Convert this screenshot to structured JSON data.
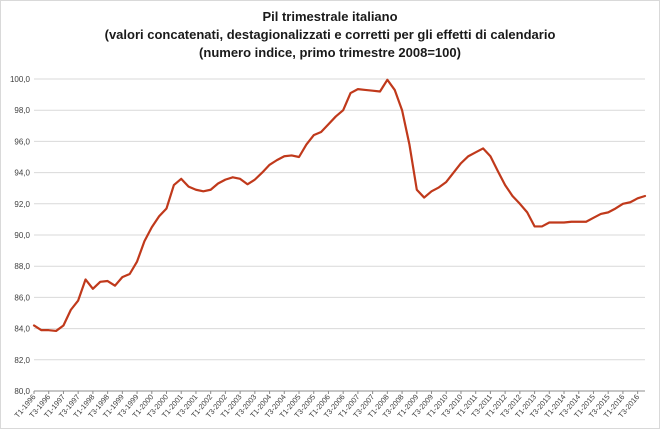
{
  "chart_data": {
    "type": "line",
    "title": "Pil trimestrale italiano",
    "subtitle": "(valori concatenati, destagionalizzati e corretti per gli effetti di calendario",
    "subtitle2": "(numero indice, primo trimestre 2008=100)",
    "xlabel": "",
    "ylabel": "",
    "ylim": [
      80,
      100
    ],
    "yticks": [
      "100,0",
      "98,0",
      "96,0",
      "94,0",
      "92,0",
      "90,0",
      "88,0",
      "86,0",
      "84,0",
      "82,0",
      "80,0"
    ],
    "grid": true,
    "legend": "none",
    "x": [
      "T1-1996",
      "T2-1996",
      "T3-1996",
      "T4-1996",
      "T1-1997",
      "T2-1997",
      "T3-1997",
      "T4-1997",
      "T1-1998",
      "T2-1998",
      "T3-1998",
      "T4-1998",
      "T1-1999",
      "T2-1999",
      "T3-1999",
      "T4-1999",
      "T1-2000",
      "T2-2000",
      "T3-2000",
      "T4-2000",
      "T1-2001",
      "T2-2001",
      "T3-2001",
      "T4-2001",
      "T1-2002",
      "T2-2002",
      "T3-2002",
      "T4-2002",
      "T1-2003",
      "T2-2003",
      "T3-2003",
      "T4-2003",
      "T1-2004",
      "T2-2004",
      "T3-2004",
      "T4-2004",
      "T1-2005",
      "T2-2005",
      "T3-2005",
      "T4-2005",
      "T1-2006",
      "T2-2006",
      "T3-2006",
      "T4-2006",
      "T1-2007",
      "T2-2007",
      "T3-2007",
      "T4-2007",
      "T1-2008",
      "T2-2008",
      "T3-2008",
      "T4-2008",
      "T1-2009",
      "T2-2009",
      "T3-2009",
      "T4-2009",
      "T1-2010",
      "T2-2010",
      "T3-2010",
      "T4-2010",
      "T1-2011",
      "T2-2011",
      "T3-2011",
      "T4-2011",
      "T1-2012",
      "T2-2012",
      "T3-2012",
      "T4-2012",
      "T1-2013",
      "T2-2013",
      "T3-2013",
      "T4-2013",
      "T1-2014",
      "T2-2014",
      "T3-2014",
      "T4-2014",
      "T1-2015",
      "T2-2015",
      "T3-2015",
      "T4-2015",
      "T1-2016",
      "T2-2016",
      "T3-2016",
      "T4-2016"
    ],
    "xtick_labels": [
      "T1-1996",
      "T3-1996",
      "T1-1997",
      "T3-1997",
      "T1-1998",
      "T3-1998",
      "T1-1999",
      "T3-1999",
      "T1-2000",
      "T3-2000",
      "T1-2001",
      "T3-2001",
      "T1-2002",
      "T3-2002",
      "T1-2003",
      "T3-2003",
      "T1-2004",
      "T3-2004",
      "T1-2005",
      "T3-2005",
      "T1-2006",
      "T3-2006",
      "T1-2007",
      "T3-2007",
      "T1-2008",
      "T3-2008",
      "T1-2009",
      "T3-2009",
      "T1-2010",
      "T3-2010",
      "T1-2011",
      "T3-2011",
      "T1-2012",
      "T3-2012",
      "T1-2013",
      "T3-2013",
      "T1-2014",
      "T3-2014",
      "T1-2015",
      "T3-2015",
      "T1-2016",
      "T3-2016"
    ],
    "series": [
      {
        "color": "#c0391b",
        "values": [
          84.2,
          83.9,
          83.9,
          83.85,
          84.2,
          85.2,
          85.8,
          87.15,
          86.55,
          87.0,
          87.05,
          86.75,
          87.3,
          87.5,
          88.3,
          89.6,
          90.5,
          91.2,
          91.7,
          93.2,
          93.6,
          93.1,
          92.9,
          92.8,
          92.9,
          93.3,
          93.55,
          93.7,
          93.6,
          93.25,
          93.55,
          94.0,
          94.5,
          94.8,
          95.05,
          95.1,
          95.0,
          95.8,
          96.4,
          96.6,
          97.1,
          97.6,
          98.0,
          99.1,
          99.35,
          99.3,
          99.25,
          99.2,
          99.95,
          99.3,
          98.0,
          95.8,
          92.9,
          92.4,
          92.8,
          93.05,
          93.4,
          94.0,
          94.6,
          95.05,
          95.3,
          95.55,
          95.05,
          94.1,
          93.2,
          92.5,
          92.0,
          91.45,
          90.55,
          90.55,
          90.8,
          90.8,
          90.8,
          90.85,
          90.85,
          90.85,
          91.1,
          91.35,
          91.45,
          91.7,
          92.0,
          92.1,
          92.35,
          92.5
        ]
      }
    ]
  }
}
